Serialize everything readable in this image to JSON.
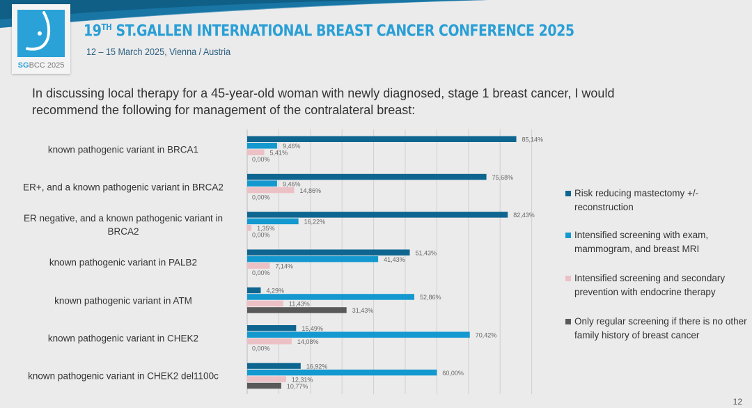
{
  "header": {
    "logo_text_accent": "SG",
    "logo_text_rest": "BCC 2025",
    "title_num": "19",
    "title_sup": "TH",
    "title_rest": " ST.GALLEN INTERNATIONAL BREAST CANCER CONFERENCE 2025",
    "subtitle": "12 – 15 March 2025, Vienna / Austria"
  },
  "question": "In discussing local therapy for a 45-year-old woman with newly diagnosed, stage 1 breast cancer,  I would recommend the following for management of the contralateral breast:",
  "page_number": "12",
  "chart_data": {
    "type": "bar",
    "orientation": "horizontal",
    "categories": [
      "known pathogenic variant in BRCA1",
      "ER+, and a known pathogenic variant in BRCA2",
      "ER negative, and a known pathogenic variant in BRCA2",
      "known pathogenic variant in PALB2",
      "known pathogenic variant in ATM",
      "known pathogenic variant in CHEK2",
      "known pathogenic variant in CHEK2 del1100c"
    ],
    "series": [
      {
        "name": "Risk reducing mastectomy +/- reconstruction",
        "color": "#0e6690",
        "values": [
          85.14,
          75.68,
          82.43,
          51.43,
          4.29,
          15.49,
          16.92
        ],
        "labels": [
          "85,14%",
          "75,68%",
          "82,43%",
          "51,43%",
          "4,29%",
          "15,49%",
          "16,92%"
        ]
      },
      {
        "name": "Intensified screening with exam, mammogram, and breast MRI",
        "color": "#1399cf",
        "values": [
          9.46,
          9.46,
          16.22,
          41.43,
          52.86,
          70.42,
          60.0
        ],
        "labels": [
          "9,46%",
          "9,46%",
          "16,22%",
          "41,43%",
          "52,86%",
          "70,42%",
          "60,00%"
        ]
      },
      {
        "name": "Intensified screening and secondary prevention with endocrine therapy",
        "color": "#ecc1c6",
        "values": [
          5.41,
          14.86,
          1.35,
          7.14,
          11.43,
          14.08,
          12.31
        ],
        "labels": [
          "5,41%",
          "14,86%",
          "1,35%",
          "7,14%",
          "11,43%",
          "14,08%",
          "12,31%"
        ]
      },
      {
        "name": "Only regular screening if there is no other family history of breast cancer",
        "color": "#595959",
        "values": [
          0.0,
          0.0,
          0.0,
          0.0,
          31.43,
          0.0,
          10.77
        ],
        "labels": [
          "0,00%",
          "0,00%",
          "0,00%",
          "0,00%",
          "31,43%",
          "0,00%",
          "10,77%"
        ]
      }
    ],
    "xlim": [
      0,
      90
    ],
    "grid": true,
    "legend": "right"
  }
}
